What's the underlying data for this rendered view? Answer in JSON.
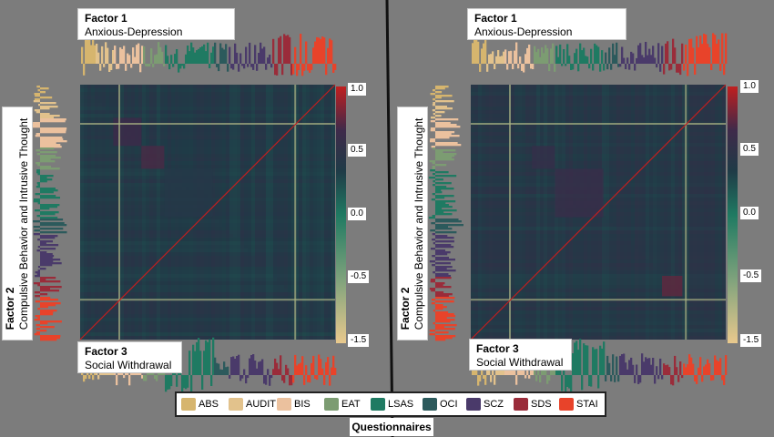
{
  "chart_data": [
    {
      "type": "heatmap",
      "panel": "left",
      "colorbar": {
        "ticks": [
          "1.0",
          "0.5",
          "0.0",
          "-0.5",
          "-1.5"
        ]
      },
      "blocks": [
        {
          "questionnaire": "BIS",
          "intra_corr": 0.5
        },
        {
          "questionnaire": "EAT",
          "intra_corr": 0.55
        },
        {
          "questionnaire": "LSAS",
          "intra_corr": 0.1
        }
      ],
      "base_corr": 0.05,
      "diagonal": 1.0
    },
    {
      "type": "heatmap",
      "panel": "right",
      "colorbar": {
        "ticks": [
          "1.0",
          "0.5",
          "0.0",
          "-0.5",
          "-1.5"
        ]
      },
      "blocks": [
        {
          "questionnaire": "SDS",
          "intra_corr": 0.65
        },
        {
          "questionnaire": "EAT",
          "intra_corr": 0.35
        },
        {
          "questionnaire": "LSAS",
          "intra_corr": 0.4
        }
      ],
      "base_corr": 0.1,
      "diagonal": 1.0
    }
  ],
  "factors": [
    {
      "name": "Factor 1",
      "desc": "Anxious-Depression"
    },
    {
      "name": "Factor 2",
      "desc": "Compulsive Behavior and Intrusive Thought"
    },
    {
      "name": "Factor 3",
      "desc": "Social Withdrawal"
    }
  ],
  "legend": {
    "title": "Questionnaires",
    "items": [
      {
        "label": "ABS",
        "color": "#d6b56e"
      },
      {
        "label": "AUDIT",
        "color": "#e2c28c"
      },
      {
        "label": "BIS",
        "color": "#ebc19e"
      },
      {
        "label": "EAT",
        "color": "#7c9c72"
      },
      {
        "label": "LSAS",
        "color": "#1f7a62"
      },
      {
        "label": "OCI",
        "color": "#2c5a5c"
      },
      {
        "label": "SCZ",
        "color": "#4a3a6a"
      },
      {
        "label": "SDS",
        "color": "#9a2c3a"
      },
      {
        "label": "STAI",
        "color": "#e8432a"
      }
    ]
  },
  "colors": {
    "background": "#7c7c7c",
    "colormap": [
      "#e9c98d",
      "#7ea27c",
      "#1f7a62",
      "#1f3b47",
      "#3f2a4a",
      "#c01f1f"
    ]
  }
}
